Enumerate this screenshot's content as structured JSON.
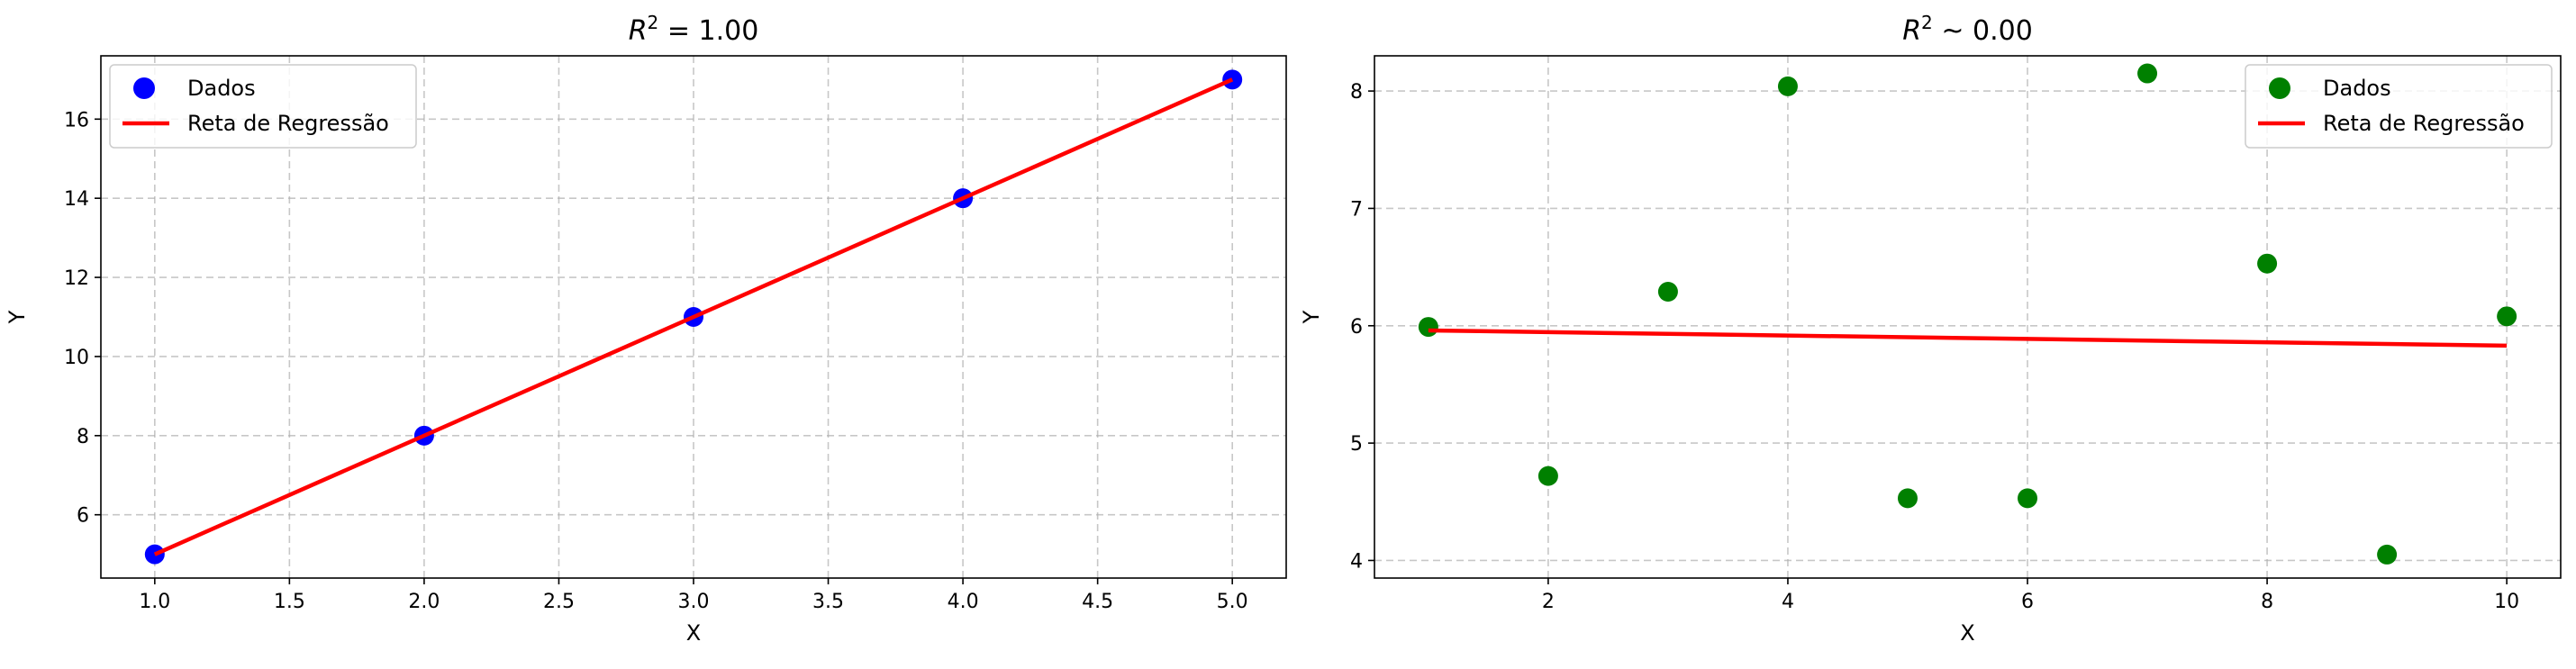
{
  "chart_data": [
    {
      "type": "scatter",
      "title": "R² = 1.00",
      "title_parts": {
        "base": "R",
        "sup": "2",
        "rest": " = 1.00"
      },
      "xlabel": "X",
      "ylabel": "Y",
      "xlim": [
        0.8,
        5.2
      ],
      "ylim": [
        4.4,
        17.6
      ],
      "xticks": [
        1.0,
        1.5,
        2.0,
        2.5,
        3.0,
        3.5,
        4.0,
        4.5,
        5.0
      ],
      "xtick_labels": [
        "1.0",
        "1.5",
        "2.0",
        "2.5",
        "3.0",
        "3.5",
        "4.0",
        "4.5",
        "5.0"
      ],
      "yticks": [
        6,
        8,
        10,
        12,
        14,
        16
      ],
      "ytick_labels": [
        "6",
        "8",
        "10",
        "12",
        "14",
        "16"
      ],
      "grid": true,
      "legend_position": "top-left",
      "series": [
        {
          "name": "Dados",
          "kind": "scatter",
          "color": "#0000ff",
          "x": [
            1,
            2,
            3,
            4,
            5
          ],
          "y": [
            5,
            8,
            11,
            14,
            17
          ]
        },
        {
          "name": "Reta de Regressão",
          "kind": "line",
          "color": "#ff0000",
          "x": [
            1,
            5
          ],
          "y": [
            5,
            17
          ]
        }
      ]
    },
    {
      "type": "scatter",
      "title": "R² ~ 0.00",
      "title_parts": {
        "base": "R",
        "sup": "2",
        "rest": " ~ 0.00"
      },
      "xlabel": "X",
      "ylabel": "Y",
      "xlim": [
        0.55,
        10.45
      ],
      "ylim": [
        3.85,
        8.3
      ],
      "xticks": [
        2,
        4,
        6,
        8,
        10
      ],
      "xtick_labels": [
        "2",
        "4",
        "6",
        "8",
        "10"
      ],
      "yticks": [
        4,
        5,
        6,
        7,
        8
      ],
      "ytick_labels": [
        "4",
        "5",
        "6",
        "7",
        "8"
      ],
      "grid": true,
      "legend_position": "top-right",
      "series": [
        {
          "name": "Dados",
          "kind": "scatter",
          "color": "#008000",
          "x": [
            1,
            2,
            3,
            4,
            5,
            6,
            7,
            8,
            9,
            10
          ],
          "y": [
            5.99,
            4.72,
            6.29,
            8.04,
            4.53,
            4.53,
            8.15,
            6.53,
            4.05,
            6.08
          ]
        },
        {
          "name": "Reta de Regressão",
          "kind": "line",
          "color": "#ff0000",
          "x": [
            1,
            10
          ],
          "y": [
            5.96,
            5.83
          ]
        }
      ]
    }
  ]
}
